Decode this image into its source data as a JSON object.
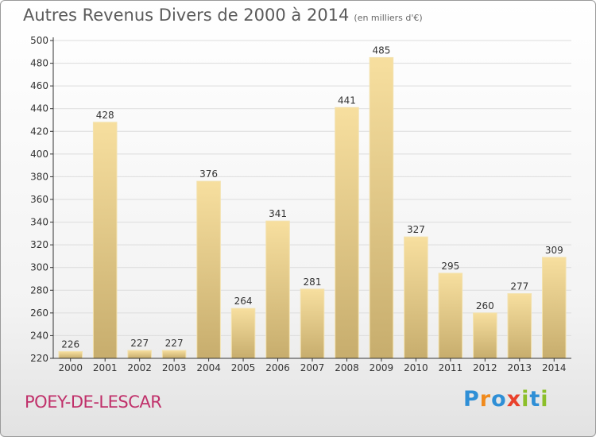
{
  "header": {
    "title": "Autres Revenus Divers de 2000 à 2014",
    "subtitle": "(en milliers d'€)"
  },
  "footer": {
    "place": "POEY-DE-LESCAR",
    "logo": "Proxiti"
  },
  "colors": {
    "bar_light": "#f7df9f",
    "bar_dark": "#c7ad6d",
    "grid": "#dcdcdc",
    "axis": "#333333",
    "place_text": "#c0306a"
  },
  "chart_data": {
    "type": "bar",
    "categories": [
      "2000",
      "2001",
      "2002",
      "2003",
      "2004",
      "2005",
      "2006",
      "2007",
      "2008",
      "2009",
      "2010",
      "2011",
      "2012",
      "2013",
      "2014"
    ],
    "values": [
      226,
      428,
      227,
      227,
      376,
      264,
      341,
      281,
      441,
      485,
      327,
      295,
      260,
      277,
      309
    ],
    "title": "Autres Revenus Divers de 2000 à 2014",
    "subtitle": "(en milliers d'€)",
    "xlabel": "",
    "ylabel": "",
    "ylim": [
      220,
      500
    ],
    "yticks": [
      220,
      240,
      260,
      280,
      300,
      320,
      340,
      360,
      380,
      400,
      420,
      440,
      460,
      480,
      500
    ],
    "grid": true,
    "legend": "none"
  }
}
